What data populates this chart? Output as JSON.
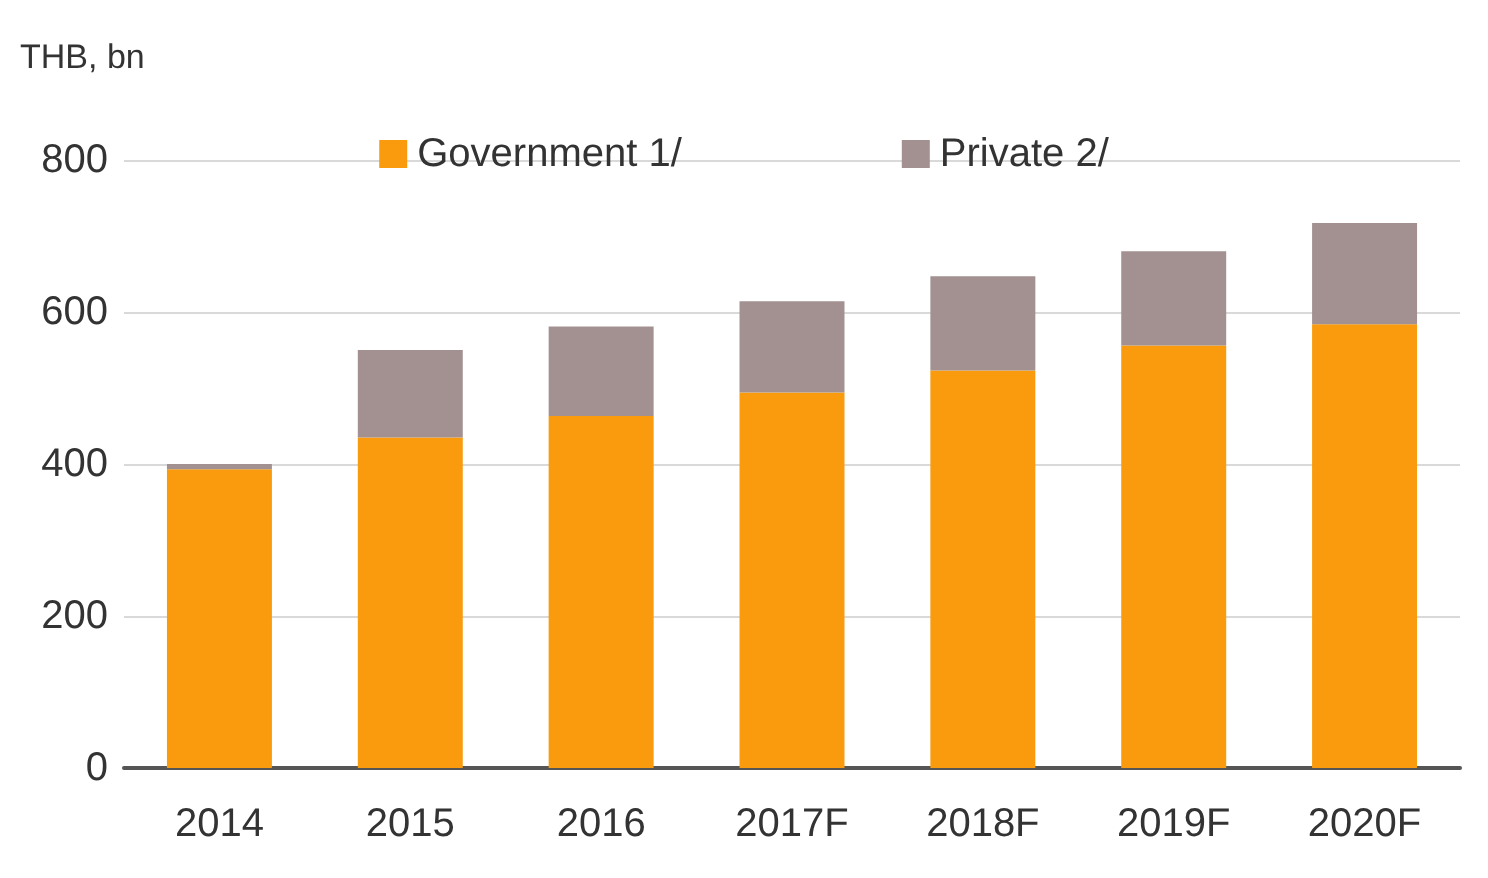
{
  "chart_data": {
    "type": "bar",
    "stacked": true,
    "ylabel": "THB, bn",
    "categories": [
      "2014",
      "2015",
      "2016",
      "2017F",
      "2018F",
      "2019F",
      "2020F"
    ],
    "series": [
      {
        "name": "Government 1/",
        "color": "#f99b0c",
        "values": [
          393,
          435,
          463,
          494,
          523,
          556,
          584
        ]
      },
      {
        "name": "Private 2/",
        "color": "#a39191",
        "values": [
          7,
          115,
          118,
          120,
          124,
          124,
          133
        ]
      }
    ],
    "ylim": [
      0,
      800
    ],
    "yticks": [
      0,
      200,
      400,
      600,
      800
    ],
    "grid": "y",
    "legend": "top"
  }
}
